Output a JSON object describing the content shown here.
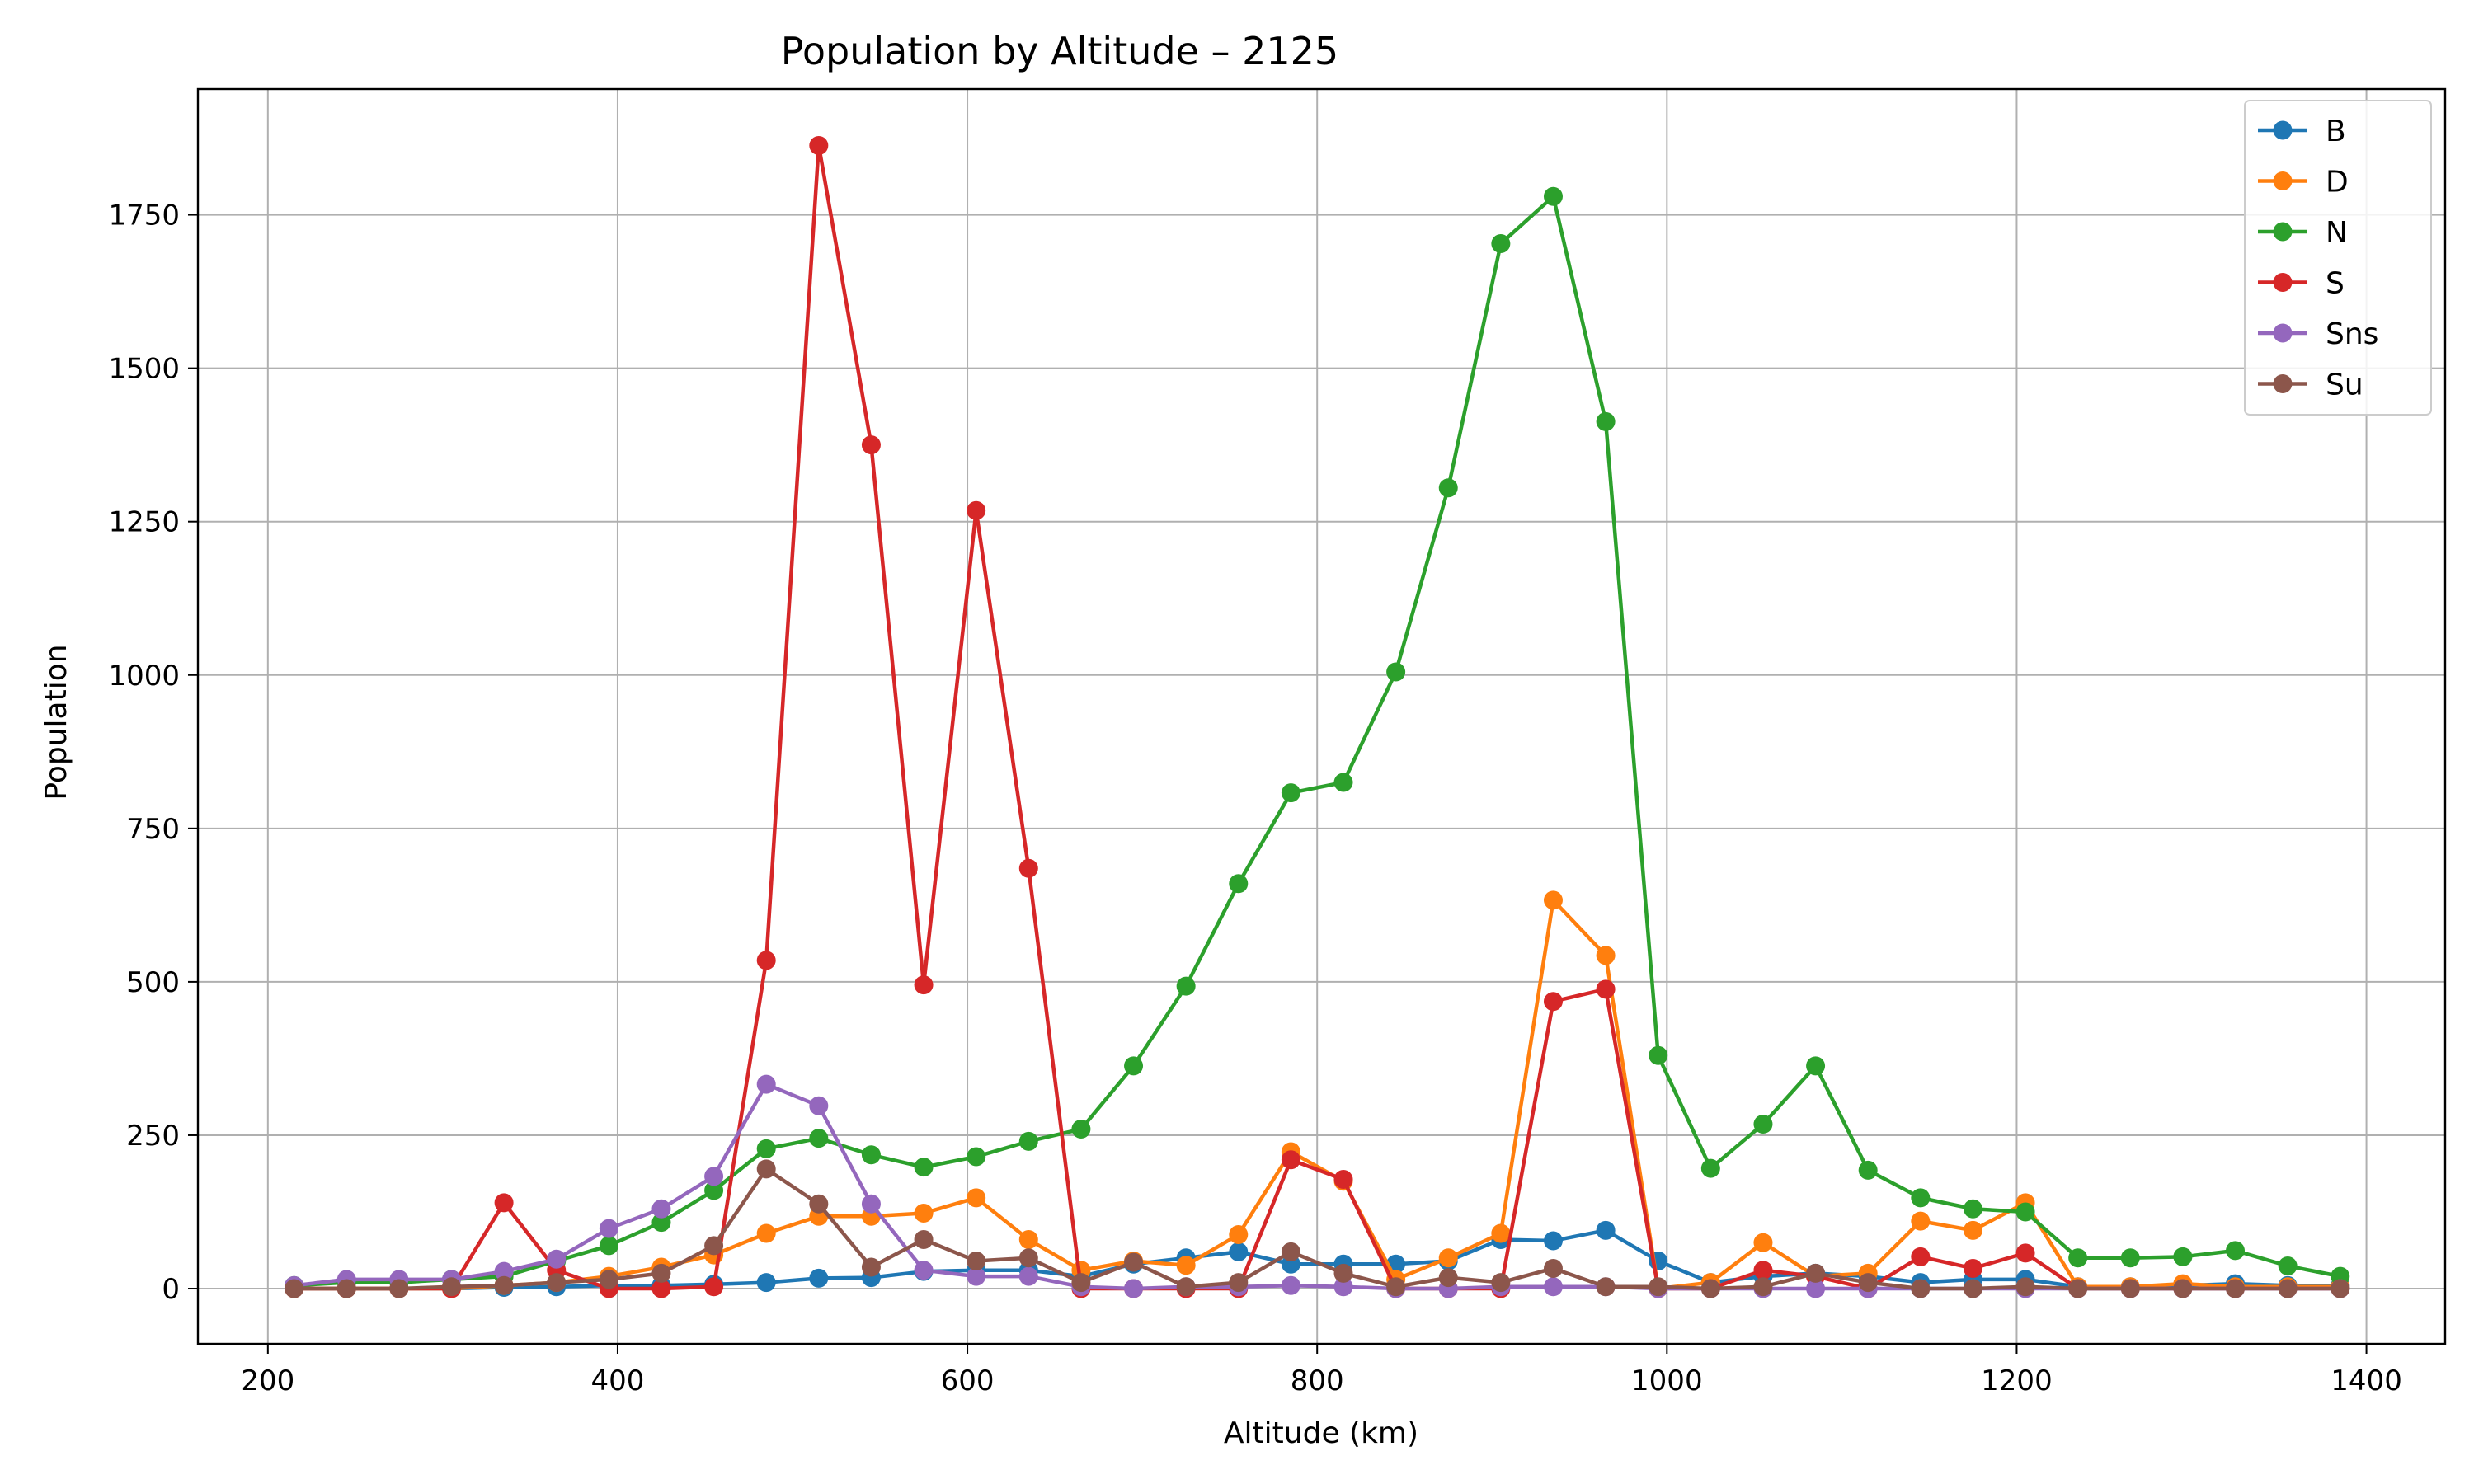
{
  "chart_data": {
    "type": "line",
    "title": "Population by Altitude – 2125",
    "xlabel": "Altitude (km)",
    "ylabel": "Population",
    "xlim": [
      160,
      1445
    ],
    "ylim": [
      -90,
      1955
    ],
    "xticks": [
      200,
      400,
      600,
      800,
      1000,
      1200,
      1400
    ],
    "yticks": [
      0,
      250,
      500,
      750,
      1000,
      1250,
      1500,
      1750
    ],
    "grid": true,
    "legend_position": "top-right",
    "x": [
      215,
      245,
      275,
      305,
      335,
      365,
      395,
      425,
      455,
      485,
      515,
      545,
      575,
      605,
      635,
      665,
      695,
      725,
      755,
      785,
      815,
      845,
      875,
      905,
      935,
      965,
      995,
      1025,
      1055,
      1085,
      1115,
      1145,
      1175,
      1205,
      1235,
      1265,
      1295,
      1325,
      1355,
      1385
    ],
    "series": [
      {
        "name": "B",
        "color": "#1f77b4",
        "values": [
          0,
          0,
          0,
          0,
          2,
          3,
          5,
          5,
          7,
          10,
          17,
          18,
          28,
          30,
          30,
          20,
          40,
          50,
          60,
          40,
          40,
          40,
          45,
          80,
          78,
          95,
          45,
          10,
          20,
          25,
          20,
          10,
          15,
          15,
          3,
          3,
          5,
          8,
          5,
          5
        ]
      },
      {
        "name": "D",
        "color": "#ff7f0e",
        "values": [
          0,
          0,
          0,
          0,
          5,
          10,
          20,
          35,
          55,
          90,
          118,
          118,
          123,
          148,
          80,
          30,
          45,
          38,
          88,
          223,
          175,
          15,
          50,
          90,
          633,
          543,
          0,
          10,
          75,
          20,
          25,
          110,
          95,
          140,
          3,
          3,
          8,
          3,
          3,
          3
        ]
      },
      {
        "name": "N",
        "color": "#2ca02c",
        "values": [
          5,
          10,
          10,
          15,
          20,
          45,
          70,
          108,
          160,
          228,
          245,
          218,
          198,
          215,
          240,
          260,
          363,
          493,
          660,
          808,
          825,
          1005,
          1305,
          1703,
          1780,
          1413,
          380,
          196,
          268,
          363,
          193,
          148,
          130,
          125,
          50,
          50,
          52,
          62,
          37,
          20
        ]
      },
      {
        "name": "S",
        "color": "#d62728",
        "values": [
          0,
          0,
          0,
          0,
          140,
          30,
          0,
          0,
          3,
          535,
          1863,
          1375,
          495,
          1268,
          685,
          0,
          0,
          0,
          0,
          210,
          178,
          0,
          0,
          0,
          468,
          488,
          0,
          0,
          30,
          20,
          0,
          52,
          33,
          58,
          0,
          0,
          0,
          0,
          0,
          0
        ]
      },
      {
        "name": "Sns",
        "color": "#9467bd",
        "values": [
          5,
          15,
          15,
          15,
          28,
          48,
          98,
          130,
          183,
          333,
          298,
          138,
          30,
          20,
          20,
          3,
          0,
          3,
          3,
          5,
          3,
          0,
          0,
          3,
          3,
          3,
          0,
          0,
          0,
          0,
          0,
          0,
          0,
          0,
          0,
          0,
          0,
          0,
          0,
          0
        ]
      },
      {
        "name": "Su",
        "color": "#8c564b",
        "values": [
          0,
          0,
          0,
          3,
          5,
          10,
          15,
          25,
          70,
          195,
          138,
          35,
          80,
          45,
          50,
          10,
          43,
          3,
          10,
          60,
          25,
          3,
          18,
          10,
          33,
          3,
          3,
          0,
          3,
          25,
          10,
          0,
          0,
          3,
          0,
          0,
          0,
          0,
          0,
          0
        ]
      }
    ]
  }
}
